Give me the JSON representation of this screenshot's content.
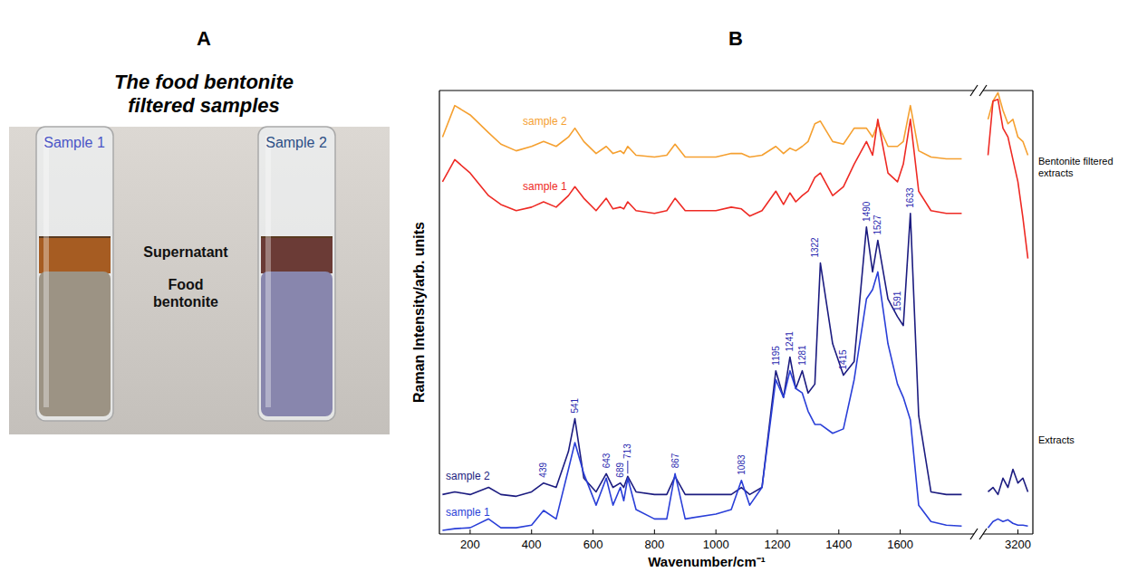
{
  "panel_a": {
    "letter": "A",
    "title": "The food bentonite filtered samples",
    "vials": [
      {
        "label": "Sample 1"
      },
      {
        "label": "Sample 2"
      }
    ],
    "layers": [
      "Supernatant",
      "Food bentonite"
    ]
  },
  "chart_data": {
    "letter": "B",
    "type": "line",
    "xlabel": "Wavenumber/cm⁻¹",
    "ylabel": "Raman Intensity/arb. units",
    "tick_labels": "x",
    "ylim": [
      0,
      100
    ],
    "segments": [
      {
        "xlim": [
          100,
          1840
        ],
        "xticks": [
          200,
          400,
          600,
          800,
          1000,
          1200,
          1400,
          1600
        ]
      },
      {
        "xlim": [
          3060,
          3260
        ],
        "xticks": [
          3200
        ]
      }
    ],
    "x": [
      110,
      150,
      200,
      260,
      300,
      350,
      400,
      439,
      480,
      520,
      541,
      570,
      610,
      643,
      665,
      689,
      700,
      713,
      740,
      800,
      840,
      867,
      900,
      1000,
      1050,
      1083,
      1110,
      1150,
      1195,
      1220,
      1241,
      1260,
      1281,
      1300,
      1322,
      1340,
      1380,
      1415,
      1450,
      1490,
      1510,
      1527,
      1560,
      1591,
      1610,
      1633,
      1660,
      1700,
      1750,
      1800,
      3080,
      3100,
      3120,
      3140,
      3160,
      3180,
      3200,
      3220,
      3240
    ],
    "series": [
      {
        "name": "sample 2",
        "color": "#f5a030",
        "values": [
          89.5,
          96.6,
          94.5,
          90.5,
          87.9,
          86.4,
          87.4,
          88.5,
          87.4,
          89.5,
          91.5,
          88.5,
          85.8,
          87.4,
          85.8,
          86.4,
          85.8,
          87.4,
          85.4,
          85.0,
          85.4,
          87.9,
          85.0,
          85.0,
          85.8,
          85.8,
          85.0,
          85.4,
          87.4,
          85.8,
          87.0,
          86.4,
          87.4,
          88.5,
          92.5,
          93.1,
          88.5,
          87.9,
          91.5,
          91.5,
          89.5,
          92.5,
          87.4,
          87.4,
          88.5,
          96.6,
          86.4,
          85.0,
          84.6,
          84.6,
          93.5,
          97.6,
          99.5,
          95.5,
          92.5,
          93.5,
          89.5,
          88.5,
          85.4
        ]
      },
      {
        "name": "sample 1",
        "color": "#ee2a24",
        "values": [
          79.4,
          84.4,
          81.4,
          76.3,
          74.3,
          72.9,
          73.7,
          74.9,
          73.7,
          76.3,
          78.3,
          75.7,
          72.9,
          75.7,
          73.3,
          73.7,
          73.3,
          74.9,
          72.9,
          72.3,
          72.9,
          75.7,
          72.9,
          72.9,
          73.7,
          73.3,
          71.7,
          72.9,
          77.3,
          74.3,
          76.9,
          74.9,
          76.3,
          77.3,
          80.4,
          81.4,
          76.3,
          78.3,
          83.4,
          88.5,
          85.4,
          93.5,
          81.4,
          79.4,
          83.4,
          93.5,
          77.3,
          72.9,
          72.3,
          72.3,
          85.4,
          97.6,
          98.0,
          91.5,
          89.5,
          84.4,
          79.4,
          71.3,
          62.1
        ]
      },
      {
        "name": "sample 2",
        "color": "#1c1c80",
        "values": [
          8.9,
          9.5,
          8.9,
          10.5,
          8.9,
          8.5,
          9.5,
          11.5,
          10.5,
          18.6,
          26.0,
          12.6,
          9.5,
          13.6,
          10.5,
          11.5,
          10.5,
          13.0,
          9.5,
          8.9,
          8.9,
          13.0,
          8.9,
          8.9,
          8.9,
          10.5,
          8.9,
          10.5,
          36.8,
          30.8,
          39.9,
          32.8,
          36.8,
          31.8,
          33.8,
          61.1,
          42.9,
          35.8,
          38.9,
          69.2,
          59.1,
          66.2,
          53.0,
          49.0,
          47.0,
          72.3,
          26.7,
          9.5,
          8.9,
          8.9,
          9.5,
          10.5,
          8.9,
          12.6,
          10.5,
          14.6,
          11.5,
          12.6,
          9.5
        ]
      },
      {
        "name": "sample 1",
        "color": "#2a3fd8",
        "values": [
          0.8,
          1.2,
          1.4,
          3.4,
          1.4,
          1.4,
          2.0,
          5.3,
          3.4,
          14.6,
          20.6,
          13.6,
          6.5,
          12.6,
          6.5,
          10.5,
          7.5,
          12.6,
          5.5,
          3.4,
          3.4,
          13.6,
          3.4,
          4.5,
          5.5,
          12.1,
          6.5,
          10.5,
          34.8,
          30.8,
          36.8,
          32.8,
          31.8,
          27.7,
          24.7,
          24.7,
          22.7,
          23.7,
          34.8,
          53.0,
          55.1,
          59.1,
          42.9,
          33.8,
          30.8,
          25.7,
          6.5,
          2.8,
          2.0,
          1.8,
          1.4,
          2.8,
          3.4,
          2.8,
          3.2,
          2.4,
          2.0,
          2.0,
          1.8
        ]
      }
    ],
    "groups": [
      "Bentonite filtered extracts",
      "Extracts"
    ],
    "peak_labels": [
      439,
      541,
      643,
      689,
      713,
      867,
      1083,
      1195,
      1241,
      1281,
      1322,
      1415,
      1490,
      1527,
      1591,
      1633
    ]
  }
}
